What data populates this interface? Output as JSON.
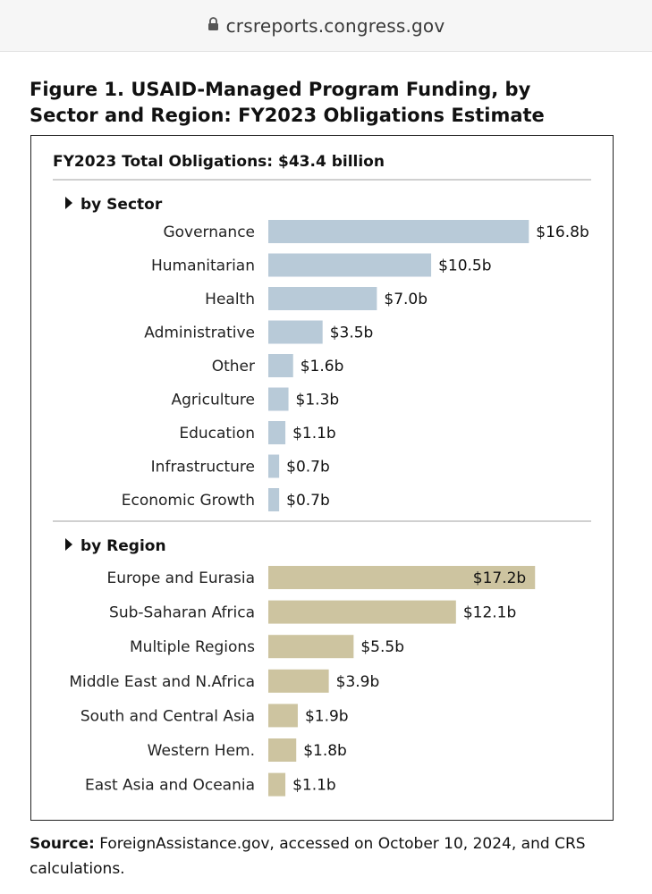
{
  "browser": {
    "url": "crsreports.congress.gov",
    "lock_icon": "lock-icon"
  },
  "figure": {
    "title_line1": "Figure 1. USAID-Managed Program Funding, by",
    "title_line2": "Sector and Region: FY2023 Obligations Estimate",
    "source_label": "Source:",
    "source_text": " ForeignAssistance.gov, accessed on October 10, 2024, and CRS calculations."
  },
  "chart_data": {
    "type": "bar",
    "orientation": "horizontal",
    "title": "FY2023 Total Obligations: $43.4 billion",
    "units": "billion USD",
    "groups": [
      {
        "name": "by Sector",
        "color": "#b8cad8",
        "categories": [
          "Governance",
          "Humanitarian",
          "Health",
          "Administrative",
          "Other",
          "Agriculture",
          "Education",
          "Infrastructure",
          "Economic Growth"
        ],
        "values": [
          16.8,
          10.5,
          7.0,
          3.5,
          1.6,
          1.3,
          1.1,
          0.7,
          0.7
        ],
        "labels": [
          "$16.8b",
          "$10.5b",
          "$7.0b",
          "$3.5b",
          "$1.6b",
          "$1.3b",
          "$1.1b",
          "$0.7b",
          "$0.7b"
        ]
      },
      {
        "name": "by Region",
        "color": "#cdc4a0",
        "categories": [
          "Europe and Eurasia",
          "Sub-Saharan Africa",
          "Multiple Regions",
          "Middle East and N.Africa",
          "South and Central Asia",
          "Western Hem.",
          "East Asia and Oceania"
        ],
        "values": [
          17.2,
          12.1,
          5.5,
          3.9,
          1.9,
          1.8,
          1.1
        ],
        "labels": [
          "$17.2b",
          "$12.1b",
          "$5.5b",
          "$3.9b",
          "$1.9b",
          "$1.8b",
          "$1.1b"
        ]
      }
    ]
  }
}
